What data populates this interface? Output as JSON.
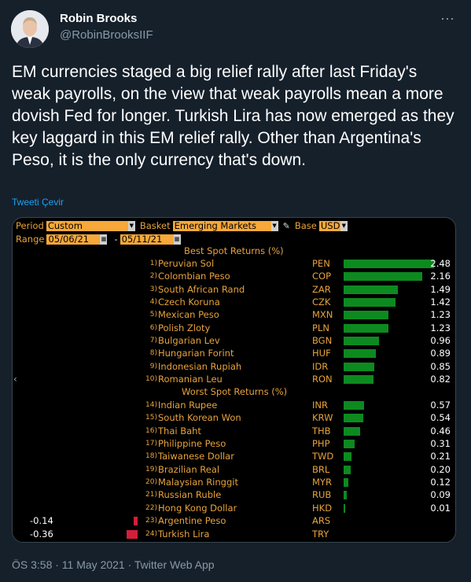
{
  "author": {
    "name": "Robin Brooks",
    "handle": "@RobinBrooksIIF"
  },
  "more_icon": "more-dots-icon",
  "tweet_text": "EM currencies staged a big relief rally after last Friday's weak payrolls, on the view that weak payrolls mean a more dovish Fed for longer. Turkish Lira has now emerged as they key laggard in this EM relief rally. Other than Argentina's Peso, it is the only currency that's down.",
  "translate_label": "Tweeti Çevir",
  "terminal": {
    "period_label": "Period",
    "period_value": "Custom",
    "basket_label": "Basket",
    "basket_value": "Emerging Markets",
    "base_label": "Base",
    "base_value": "USD",
    "range_label": "Range",
    "range_start": "05/06/21",
    "range_end": "05/11/21",
    "range_separator": "-",
    "best_title": "Best Spot Returns (%)",
    "worst_title": "Worst Spot Returns (%)",
    "colors": {
      "bar_positive": "#0d8a1f",
      "bar_negative": "#d11f3a",
      "label": "#e8a33c",
      "field": "#f7a83a"
    }
  },
  "chart_data": {
    "type": "bar",
    "title": "",
    "best": [
      {
        "rank": "1)",
        "name": "Peruvian Sol",
        "code": "PEN",
        "value": 2.48
      },
      {
        "rank": "2)",
        "name": "Colombian Peso",
        "code": "COP",
        "value": 2.16
      },
      {
        "rank": "3)",
        "name": "South African Rand",
        "code": "ZAR",
        "value": 1.49
      },
      {
        "rank": "4)",
        "name": "Czech Koruna",
        "code": "CZK",
        "value": 1.42
      },
      {
        "rank": "5)",
        "name": "Mexican Peso",
        "code": "MXN",
        "value": 1.23
      },
      {
        "rank": "6)",
        "name": "Polish Zloty",
        "code": "PLN",
        "value": 1.23
      },
      {
        "rank": "7)",
        "name": "Bulgarian Lev",
        "code": "BGN",
        "value": 0.96
      },
      {
        "rank": "8)",
        "name": "Hungarian Forint",
        "code": "HUF",
        "value": 0.89
      },
      {
        "rank": "9)",
        "name": "Indonesian Rupiah",
        "code": "IDR",
        "value": 0.85
      },
      {
        "rank": "10)",
        "name": "Romanian Leu",
        "code": "RON",
        "value": 0.82
      }
    ],
    "worst": [
      {
        "rank": "14)",
        "name": "Indian Rupee",
        "code": "INR",
        "value": 0.57
      },
      {
        "rank": "15)",
        "name": "South Korean Won",
        "code": "KRW",
        "value": 0.54
      },
      {
        "rank": "16)",
        "name": "Thai Baht",
        "code": "THB",
        "value": 0.46
      },
      {
        "rank": "17)",
        "name": "Philippine Peso",
        "code": "PHP",
        "value": 0.31
      },
      {
        "rank": "18)",
        "name": "Taiwanese Dollar",
        "code": "TWD",
        "value": 0.21
      },
      {
        "rank": "19)",
        "name": "Brazilian Real",
        "code": "BRL",
        "value": 0.2
      },
      {
        "rank": "20)",
        "name": "Malaysian Ringgit",
        "code": "MYR",
        "value": 0.12
      },
      {
        "rank": "21)",
        "name": "Russian Ruble",
        "code": "RUB",
        "value": 0.09
      },
      {
        "rank": "22)",
        "name": "Hong Kong Dollar",
        "code": "HKD",
        "value": 0.01
      },
      {
        "rank": "23)",
        "name": "Argentine Peso",
        "code": "ARS",
        "value": -0.14
      },
      {
        "rank": "24)",
        "name": "Turkish Lira",
        "code": "TRY",
        "value": -0.36
      }
    ]
  },
  "footer": "ÖS 3:58 · 11 May 2021 · Twitter Web App"
}
